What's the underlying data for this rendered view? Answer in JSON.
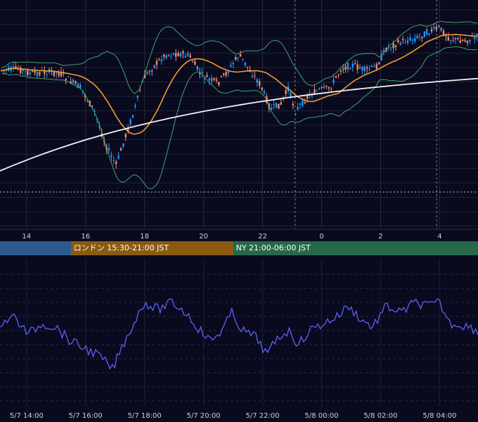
{
  "chart_data": [
    {
      "type": "candlestick",
      "panel": "price",
      "x_ticks": [
        "14",
        "16",
        "18",
        "20",
        "22",
        "0",
        "2",
        "4"
      ],
      "x_tick_positions_hours": [
        14,
        16,
        18,
        20,
        22,
        24,
        26,
        28
      ],
      "x_range_hours": [
        13.1,
        29.3
      ],
      "horizontal_reference_line": "dotted",
      "day_separators_hours": [
        23.1,
        27.9
      ],
      "indicators": [
        "bollinger-bands",
        "moving-average-orange",
        "moving-average-white"
      ],
      "series_colors": {
        "up": "#2196f3",
        "down": "#ef8a6f",
        "bb": "#3fa46a",
        "ma_mid": "#f29a2e",
        "ma_long": "#f2f2f2"
      },
      "grid": true
    },
    {
      "type": "line",
      "panel": "oscillator",
      "x_ticks": [
        "5/7 14:00",
        "5/7 16:00",
        "5/7 18:00",
        "5/7 20:00",
        "5/7 22:00",
        "5/8 00:00",
        "5/8 02:00",
        "5/8 04:00"
      ],
      "color": "#5b63f5",
      "grid": "dashed"
    }
  ],
  "sessions": [
    {
      "label": "",
      "color": "#2d5a8c",
      "start_hour": 13.1,
      "end_hour": 15.5
    },
    {
      "label": "ロンドン 15:30-21:00 JST",
      "color": "#8a5a12",
      "start_hour": 15.5,
      "end_hour": 21.0
    },
    {
      "label": "NY 21:00-06:00 JST",
      "color": "#25684a",
      "start_hour": 21.0,
      "end_hour": 29.3
    }
  ]
}
